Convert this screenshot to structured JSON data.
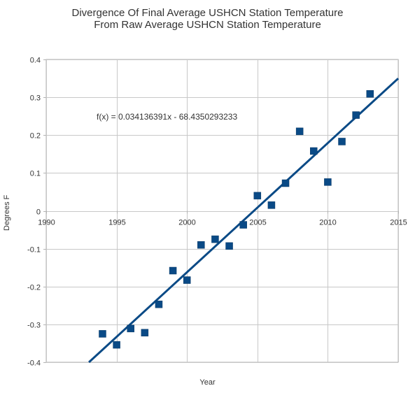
{
  "chart_data": {
    "type": "scatter",
    "title": "Divergence Of Final Average USHCN Station Temperature",
    "subtitle": "From Raw Average USHCN Station Temperature",
    "xlabel": "Year",
    "ylabel": "Degrees F",
    "xlim": [
      1990,
      2015
    ],
    "ylim": [
      -0.4,
      0.4
    ],
    "x_ticks": [
      "1990",
      "1995",
      "2000",
      "2005",
      "2010",
      "2015"
    ],
    "y_ticks": [
      "0.4",
      "0.3",
      "0.2",
      "0.1",
      "0",
      "-0.1",
      "-0.2",
      "-0.3",
      "-0.4"
    ],
    "grid": true,
    "annotation": "f(x) = 0.034136391x - 68.4350293233",
    "trendline": {
      "slope": 0.034136391,
      "intercept": -68.4350293233
    },
    "points": [
      {
        "x": 1994,
        "y": -0.325
      },
      {
        "x": 1995,
        "y": -0.354
      },
      {
        "x": 1996,
        "y": -0.311
      },
      {
        "x": 1997,
        "y": -0.322
      },
      {
        "x": 1998,
        "y": -0.247
      },
      {
        "x": 1999,
        "y": -0.158
      },
      {
        "x": 2000,
        "y": -0.183
      },
      {
        "x": 2001,
        "y": -0.09
      },
      {
        "x": 2002,
        "y": -0.075
      },
      {
        "x": 2003,
        "y": -0.093
      },
      {
        "x": 2004,
        "y": -0.037
      },
      {
        "x": 2005,
        "y": 0.04
      },
      {
        "x": 2006,
        "y": 0.015
      },
      {
        "x": 2007,
        "y": 0.073
      },
      {
        "x": 2008,
        "y": 0.21
      },
      {
        "x": 2009,
        "y": 0.158
      },
      {
        "x": 2010,
        "y": 0.076
      },
      {
        "x": 2011,
        "y": 0.183
      },
      {
        "x": 2012,
        "y": 0.253
      },
      {
        "x": 2013,
        "y": 0.309
      }
    ],
    "colors": {
      "marker": "#0a4a86",
      "trendline": "#0a4a86",
      "grid": "#c8c8c8",
      "axis": "#b3b3b3"
    }
  }
}
